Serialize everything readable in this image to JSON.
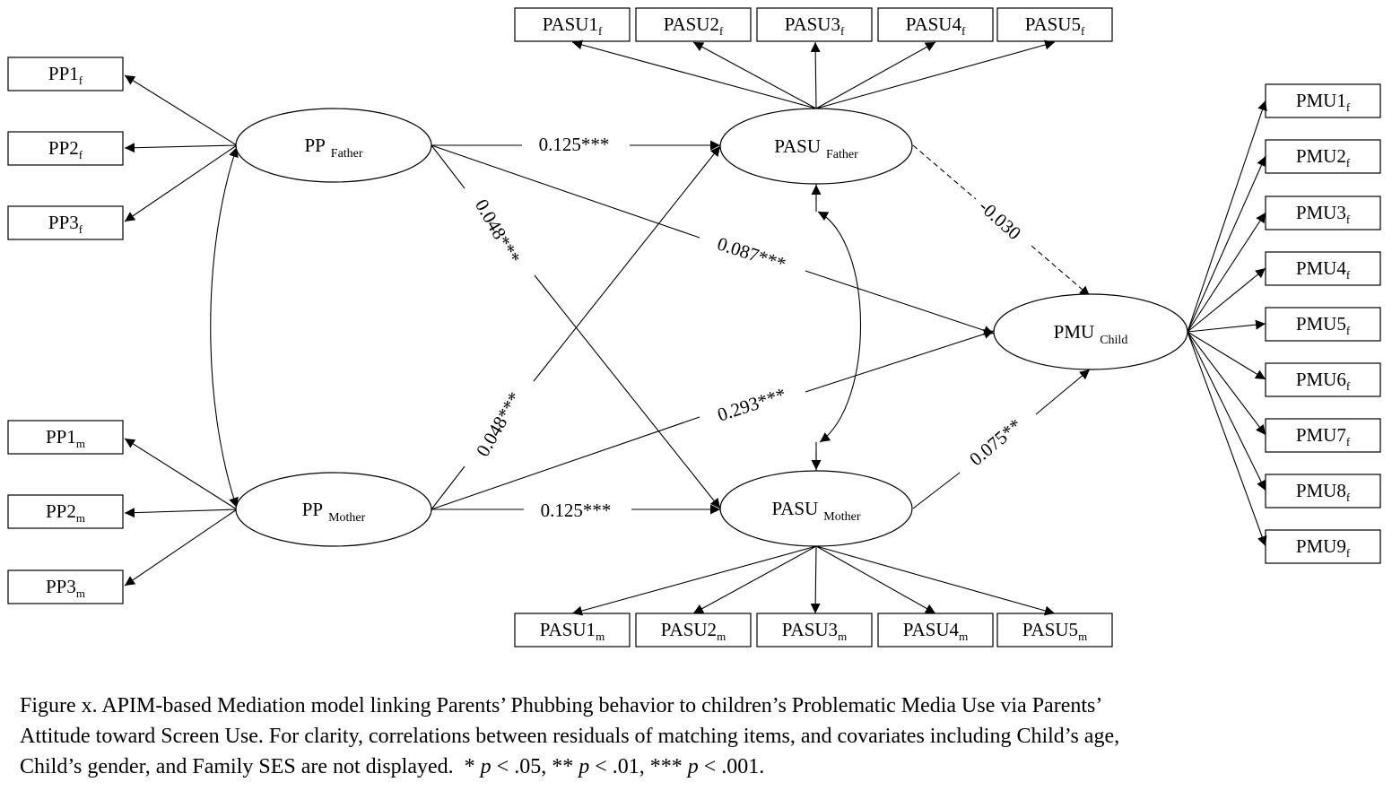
{
  "latents": {
    "pp_father": {
      "main": "PP",
      "sub": "Father"
    },
    "pp_mother": {
      "main": "PP",
      "sub": "Mother"
    },
    "pasu_father": {
      "main": "PASU",
      "sub": "Father"
    },
    "pasu_mother": {
      "main": "PASU",
      "sub": "Mother"
    },
    "pmu_child": {
      "main": "PMU",
      "sub": "Child"
    }
  },
  "indicators": {
    "pp_father": [
      {
        "main": "PP1",
        "sub": "f"
      },
      {
        "main": "PP2",
        "sub": "f"
      },
      {
        "main": "PP3",
        "sub": "f"
      }
    ],
    "pp_mother": [
      {
        "main": "PP1",
        "sub": "m"
      },
      {
        "main": "PP2",
        "sub": "m"
      },
      {
        "main": "PP3",
        "sub": "m"
      }
    ],
    "pasu_father": [
      {
        "main": "PASU1",
        "sub": "f"
      },
      {
        "main": "PASU2",
        "sub": "f"
      },
      {
        "main": "PASU3",
        "sub": "f"
      },
      {
        "main": "PASU4",
        "sub": "f"
      },
      {
        "main": "PASU5",
        "sub": "f"
      }
    ],
    "pasu_mother": [
      {
        "main": "PASU1",
        "sub": "m"
      },
      {
        "main": "PASU2",
        "sub": "m"
      },
      {
        "main": "PASU3",
        "sub": "m"
      },
      {
        "main": "PASU4",
        "sub": "m"
      },
      {
        "main": "PASU5",
        "sub": "m"
      }
    ],
    "pmu_child": [
      {
        "main": "PMU1",
        "sub": "f"
      },
      {
        "main": "PMU2",
        "sub": "f"
      },
      {
        "main": "PMU3",
        "sub": "f"
      },
      {
        "main": "PMU4",
        "sub": "f"
      },
      {
        "main": "PMU5",
        "sub": "f"
      },
      {
        "main": "PMU6",
        "sub": "f"
      },
      {
        "main": "PMU7",
        "sub": "f"
      },
      {
        "main": "PMU8",
        "sub": "f"
      },
      {
        "main": "PMU9",
        "sub": "f"
      }
    ]
  },
  "paths": {
    "ppf_pasuf": "0.125***",
    "ppm_pasum": "0.125***",
    "ppf_pasum": "0.048***",
    "ppm_pasuf": "0.048***",
    "ppf_pmu": "0.087***",
    "ppm_pmu": "0.293***",
    "pasuf_pmu": "-0.030",
    "pasum_pmu": "0.075**"
  },
  "caption": {
    "line1": "Figure x. APIM-based Mediation model linking Parents’ Phubbing behavior to children’s Problematic Media Use via Parents’",
    "line2": "Attitude toward Screen Use. For clarity, correlations between residuals of matching items, and covariates including Child’s age,",
    "line3_text": "Child’s gender, and Family SES are not displayed.  ",
    "sig1_star": "* ",
    "sig1_p": "p",
    "sig1_rest": " < .05, ",
    "sig2_star": "** ",
    "sig2_p": "p",
    "sig2_rest": " < .01, ",
    "sig3_star": "*** ",
    "sig3_p": "p",
    "sig3_rest": " < .001."
  }
}
